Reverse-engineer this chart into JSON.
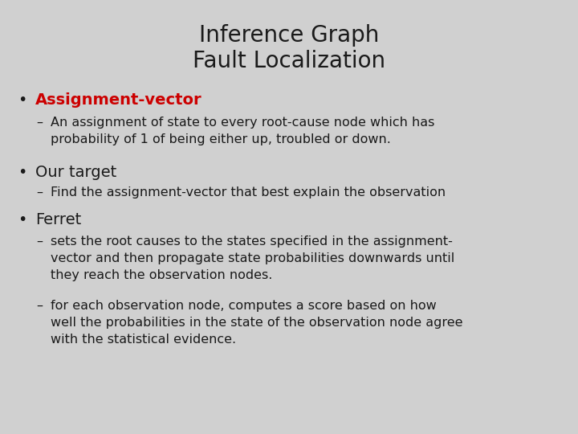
{
  "title_line1": "Inference Graph",
  "title_line2": "Fault Localization",
  "title_color": "#1a1a1a",
  "title_fontsize": 20,
  "background_color": "#d0d0d0",
  "text_color": "#1a1a1a",
  "bullet1_text": "Assignment-vector",
  "bullet1_color": "#cc0000",
  "bullet1_sub": "An assignment of state to every root-cause node which has\nprobability of 1 of being either up, troubled or down.",
  "bullet2_text": "Our target",
  "bullet2_color": "#1a1a1a",
  "bullet2_sub": "Find the assignment-vector that best explain the observation",
  "bullet3_text": "Ferret",
  "bullet3_color": "#1a1a1a",
  "bullet3_sub1": "sets the root causes to the states specified in the assignment-\nvector and then propagate state probabilities downwards until\nthey reach the observation nodes.",
  "bullet3_sub2": "for each observation node, computes a score based on how\nwell the probabilities in the state of the observation node agree\nwith the statistical evidence.",
  "font_family": "DejaVu Sans",
  "sub_fontsize": 11.5,
  "bullet_fontsize": 14,
  "fig_width": 7.2,
  "fig_height": 5.4,
  "dpi": 100
}
